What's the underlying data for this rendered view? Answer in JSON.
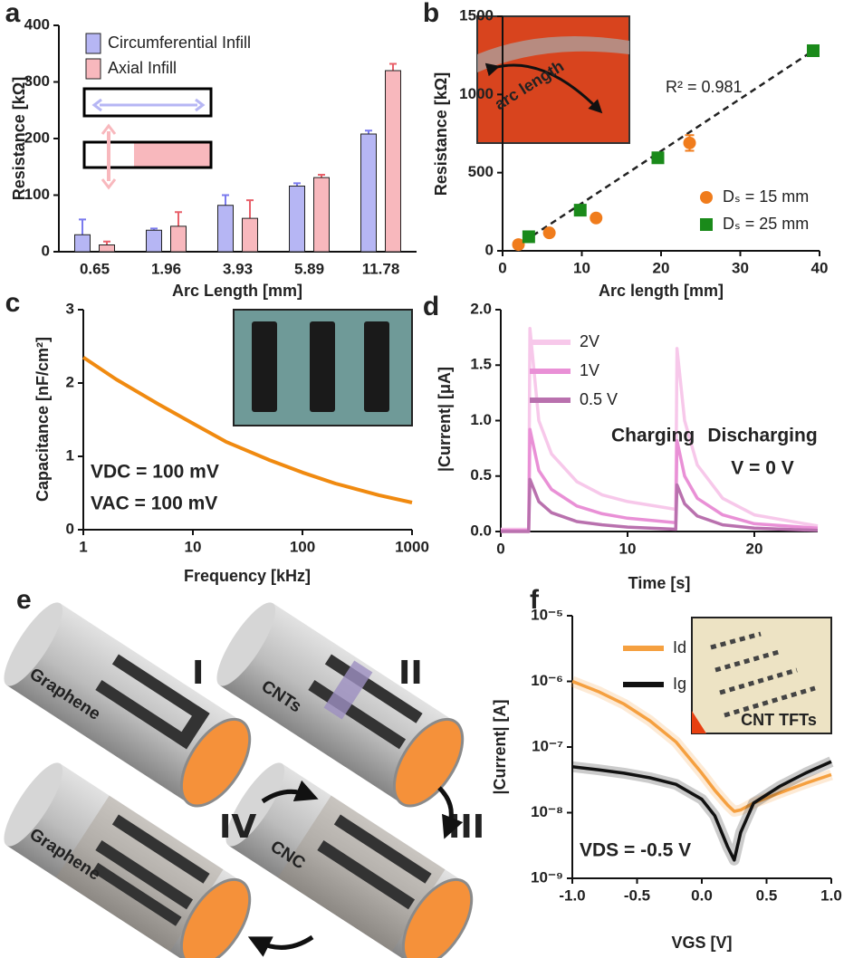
{
  "chart_data": [
    {
      "type": "bar",
      "label": "a",
      "xlabel": "Arc Length [mm]",
      "ylabel": "Resistance [kΩ]",
      "categories": [
        "0.65",
        "1.96",
        "3.93",
        "5.89",
        "11.78"
      ],
      "series": [
        {
          "name": "Circumferential Infill",
          "color": "#b6b6f4",
          "error_color": "#7a7aee",
          "values": [
            30,
            38,
            82,
            116,
            208
          ],
          "errors": [
            27,
            3,
            18,
            5,
            6
          ]
        },
        {
          "name": "Axial Infill",
          "color": "#f8b8bd",
          "error_color": "#e8606a",
          "values": [
            12,
            45,
            59,
            131,
            320
          ],
          "errors": [
            6,
            25,
            32,
            5,
            12
          ]
        }
      ],
      "ylim": [
        0,
        400
      ],
      "yticks": [
        0,
        100,
        200,
        300,
        400
      ],
      "legend": "upper left"
    },
    {
      "type": "scatter",
      "label": "b",
      "xlabel": "Arc length [mm]",
      "ylabel": "Resistance [kΩ]",
      "series": [
        {
          "name": "Dₛ = 15 mm",
          "color": "#f07c1c",
          "marker": "circle",
          "x": [
            2,
            5.9,
            11.8,
            23.6
          ],
          "values": [
            40,
            115,
            210,
            690
          ],
          "errors": [
            10,
            10,
            10,
            50
          ]
        },
        {
          "name": "Dₛ = 25 mm",
          "color": "#1a8a1a",
          "marker": "square",
          "x": [
            3.3,
            9.8,
            19.6,
            39.2
          ],
          "values": [
            90,
            260,
            595,
            1280
          ]
        }
      ],
      "fit": {
        "x": [
          1.5,
          39.2
        ],
        "values": [
          20,
          1280
        ]
      },
      "annotations": [
        "R² = 0.981"
      ],
      "inset_text": "arc length",
      "xlim": [
        0,
        40
      ],
      "xticks": [
        0,
        10,
        20,
        30,
        40
      ],
      "ylim": [
        0,
        1500
      ],
      "yticks": [
        0,
        500,
        1000,
        1500
      ],
      "legend": "lower right"
    },
    {
      "type": "line",
      "label": "c",
      "xlabel": "Frequency [kHz]",
      "ylabel": "Capacitance [nF/cm²]",
      "x": [
        1,
        2,
        5,
        10,
        20,
        50,
        100,
        200,
        500,
        1000
      ],
      "series": [
        {
          "color": "#f08a10",
          "values": [
            2.35,
            2.05,
            1.7,
            1.45,
            1.2,
            0.95,
            0.78,
            0.63,
            0.47,
            0.37
          ]
        }
      ],
      "xscale": "log",
      "xlim": [
        1,
        1000
      ],
      "xticks": [
        1,
        10,
        100,
        1000
      ],
      "ylim": [
        0,
        3
      ],
      "yticks": [
        0,
        1,
        2,
        3
      ],
      "annotations": [
        "VDC = 100 mV",
        "VAC = 100 mV"
      ]
    },
    {
      "type": "line",
      "label": "d",
      "xlabel": "Time [s]",
      "ylabel": "|Current| [μA]",
      "x": [
        0,
        2.2,
        2.3,
        3,
        4,
        6,
        8,
        10,
        13.8,
        13.9,
        14.5,
        15.5,
        17.5,
        20,
        25
      ],
      "series": [
        {
          "name": "2V",
          "color": "#f7c8ea",
          "values": [
            0.02,
            0.02,
            1.83,
            1.0,
            0.7,
            0.45,
            0.33,
            0.27,
            0.2,
            1.65,
            1.0,
            0.6,
            0.3,
            0.15,
            0.05
          ]
        },
        {
          "name": "1V",
          "color": "#e990d6",
          "values": [
            0.01,
            0.01,
            0.92,
            0.55,
            0.38,
            0.23,
            0.16,
            0.12,
            0.08,
            0.82,
            0.5,
            0.3,
            0.15,
            0.07,
            0.03
          ]
        },
        {
          "name": "0.5 V",
          "color": "#b971ae",
          "values": [
            0,
            0,
            0.47,
            0.27,
            0.17,
            0.09,
            0.06,
            0.04,
            0.02,
            0.42,
            0.25,
            0.14,
            0.06,
            0.03,
            0.01
          ]
        }
      ],
      "xlim": [
        0,
        25
      ],
      "xticks": [
        0,
        10,
        20
      ],
      "ylim": [
        0,
        2
      ],
      "yticks": [
        {
          "value": 0,
          "label": "0.0"
        },
        0.5,
        {
          "value": 1,
          "label": "1.0"
        },
        1.5,
        {
          "value": 2,
          "label": "2.0"
        }
      ],
      "annotations": [
        "Charging",
        "Discharging",
        "V = 0 V"
      ],
      "legend": "upper left"
    },
    {
      "type": "line",
      "label": "f",
      "xlabel": "VGS [V]",
      "ylabel": "|Current| [A]",
      "x": [
        -1,
        -0.8,
        -0.6,
        -0.4,
        -0.2,
        0,
        0.1,
        0.2,
        0.25,
        0.3,
        0.4,
        0.6,
        0.8,
        1
      ],
      "series": [
        {
          "name": "Id",
          "color": "#f5a040",
          "values": [
            1e-06,
            7e-07,
            4.5e-07,
            2.5e-07,
            1.2e-07,
            4e-08,
            2.2e-08,
            1.3e-08,
            1.05e-08,
            1.1e-08,
            1.4e-08,
            2e-08,
            2.8e-08,
            3.8e-08
          ]
        },
        {
          "name": "Ig",
          "color": "#111111",
          "values": [
            5e-08,
            4.5e-08,
            4e-08,
            3.4e-08,
            2.7e-08,
            1.6e-08,
            9e-09,
            3e-09,
            1.9e-09,
            5e-09,
            1.4e-08,
            2.5e-08,
            4e-08,
            6e-08
          ]
        }
      ],
      "yscale": "log",
      "xlim": [
        -1,
        1
      ],
      "xticks": [
        {
          "value": -1,
          "label": "-1.0"
        },
        -0.5,
        {
          "value": 0,
          "label": "0.0"
        },
        0.5,
        {
          "value": 1,
          "label": "1.0"
        }
      ],
      "ylim": [
        1e-09,
        1e-05
      ],
      "yticks": [
        {
          "value": 1e-09,
          "label": "10⁻⁹"
        },
        {
          "value": 1e-08,
          "label": "10⁻⁸"
        },
        {
          "value": 1e-07,
          "label": "10⁻⁷"
        },
        {
          "value": 1e-06,
          "label": "10⁻⁶"
        },
        {
          "value": 1e-05,
          "label": "10⁻⁵"
        }
      ],
      "annotations": [
        "VDS = -0.5 V"
      ],
      "inset_text": "CNT TFTs",
      "legend": "upper left"
    }
  ],
  "diagram": {
    "label": "e",
    "steps": [
      {
        "numeral": "I",
        "material": "Graphene"
      },
      {
        "numeral": "II",
        "material": "CNTs"
      },
      {
        "numeral": "III",
        "material": "CNC"
      },
      {
        "numeral": "IV",
        "material": "Graphene"
      }
    ]
  }
}
